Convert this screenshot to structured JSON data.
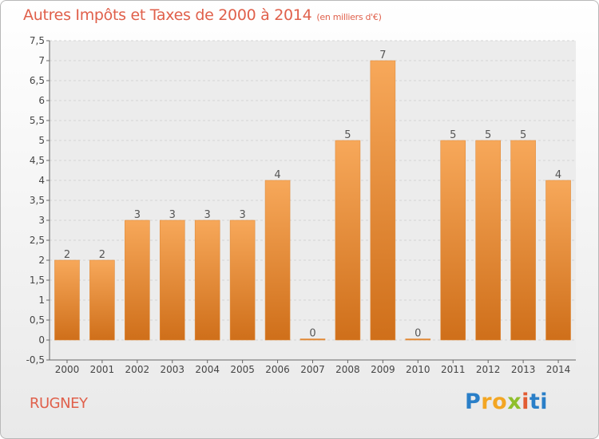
{
  "title": "Autres Impôts et Taxes de 2000 à 2014",
  "unit_label": "(en milliers d'€)",
  "commune": "RUGNEY",
  "logo_letters": [
    "P",
    "r",
    "o",
    "x",
    "i",
    "ti"
  ],
  "colors": {
    "bar_top": "#f7a85a",
    "bar_bottom": "#cf6f1a",
    "title": "#e0604b"
  },
  "chart_data": {
    "type": "bar",
    "categories": [
      "2000",
      "2001",
      "2002",
      "2003",
      "2004",
      "2005",
      "2006",
      "2007",
      "2008",
      "2009",
      "2010",
      "2011",
      "2012",
      "2013",
      "2014"
    ],
    "values": [
      2,
      2,
      3,
      3,
      3,
      3,
      4,
      0,
      5,
      7,
      0,
      5,
      5,
      5,
      4
    ],
    "data_labels": [
      "2",
      "2",
      "3",
      "3",
      "3",
      "3",
      "4",
      "0",
      "5",
      "7",
      "0",
      "5",
      "5",
      "5",
      "4"
    ],
    "y_ticks": [
      "-0,5",
      "0",
      "0,5",
      "1",
      "1,5",
      "2",
      "2,5",
      "3",
      "3,5",
      "4",
      "4,5",
      "5",
      "5,5",
      "6",
      "6,5",
      "7",
      "7,5"
    ],
    "ylim": [
      -0.5,
      7.5
    ],
    "grid": true
  }
}
